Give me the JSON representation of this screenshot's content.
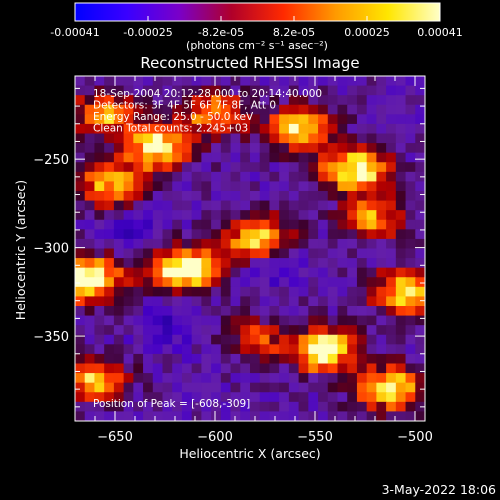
{
  "colorbar": {
    "tick_labels": [
      "-0.00041",
      "-0.00025",
      "-8.2e-05",
      "8.2e-05",
      "0.00025",
      "0.00041"
    ],
    "range": [
      -0.00041,
      0.00041
    ],
    "stops": [
      "#0000ff",
      "#3a00ff",
      "#7a00c8",
      "#b0002a",
      "#ff2a00",
      "#ff9a00",
      "#ffe600",
      "#ffffc8"
    ]
  },
  "chart_data": {
    "type": "heatmap",
    "title": "Reconstructed RHESSI Image",
    "xlabel": "Heliocentric X (arcsec)",
    "ylabel": "Heliocentric Y (arcsec)",
    "units": "(photons cm⁻² s⁻¹ asec⁻²)",
    "xlim": [
      -670,
      -495
    ],
    "ylim": [
      -398,
      -203
    ],
    "x_ticks": [
      -650,
      -600,
      -550,
      -500
    ],
    "y_ticks": [
      -250,
      -300,
      -350
    ],
    "x_tick_labels": [
      "−650",
      "−600",
      "−550",
      "−500"
    ],
    "y_tick_labels": [
      "−250",
      "−300",
      "−350"
    ],
    "info_lines": [
      "18-Sep-2004 20:12:28.000 to 20:14:40.000",
      "Detectors: 3F 4F 5F 6F 7F 8F, Att 0",
      "Energy Range: 25.0 - 50.0 keV",
      "Clean    Total counts: 2.245+03"
    ],
    "peak_label": "Position of Peak = [-608,-309]",
    "peak": [
      -608,
      -309
    ],
    "grid": false,
    "bright_regions": [
      {
        "x": -615,
        "y": -312,
        "level": 1.0
      },
      {
        "x": -662,
        "y": -318,
        "level": 0.95
      },
      {
        "x": -628,
        "y": -243,
        "level": 0.85
      },
      {
        "x": -530,
        "y": -256,
        "level": 0.9
      },
      {
        "x": -557,
        "y": -233,
        "level": 0.75
      },
      {
        "x": -652,
        "y": -265,
        "level": 0.7
      },
      {
        "x": -545,
        "y": -358,
        "level": 0.85
      },
      {
        "x": -513,
        "y": -380,
        "level": 0.8
      },
      {
        "x": -578,
        "y": -295,
        "level": 0.75
      },
      {
        "x": -655,
        "y": -225,
        "level": 0.6
      },
      {
        "x": -505,
        "y": -325,
        "level": 0.7
      },
      {
        "x": -600,
        "y": -225,
        "level": 0.6
      },
      {
        "x": -582,
        "y": -352,
        "level": 0.55
      },
      {
        "x": -660,
        "y": -375,
        "level": 0.6
      },
      {
        "x": -520,
        "y": -283,
        "level": 0.55
      }
    ]
  },
  "footer": {
    "date": "3-May-2022 18:06"
  }
}
